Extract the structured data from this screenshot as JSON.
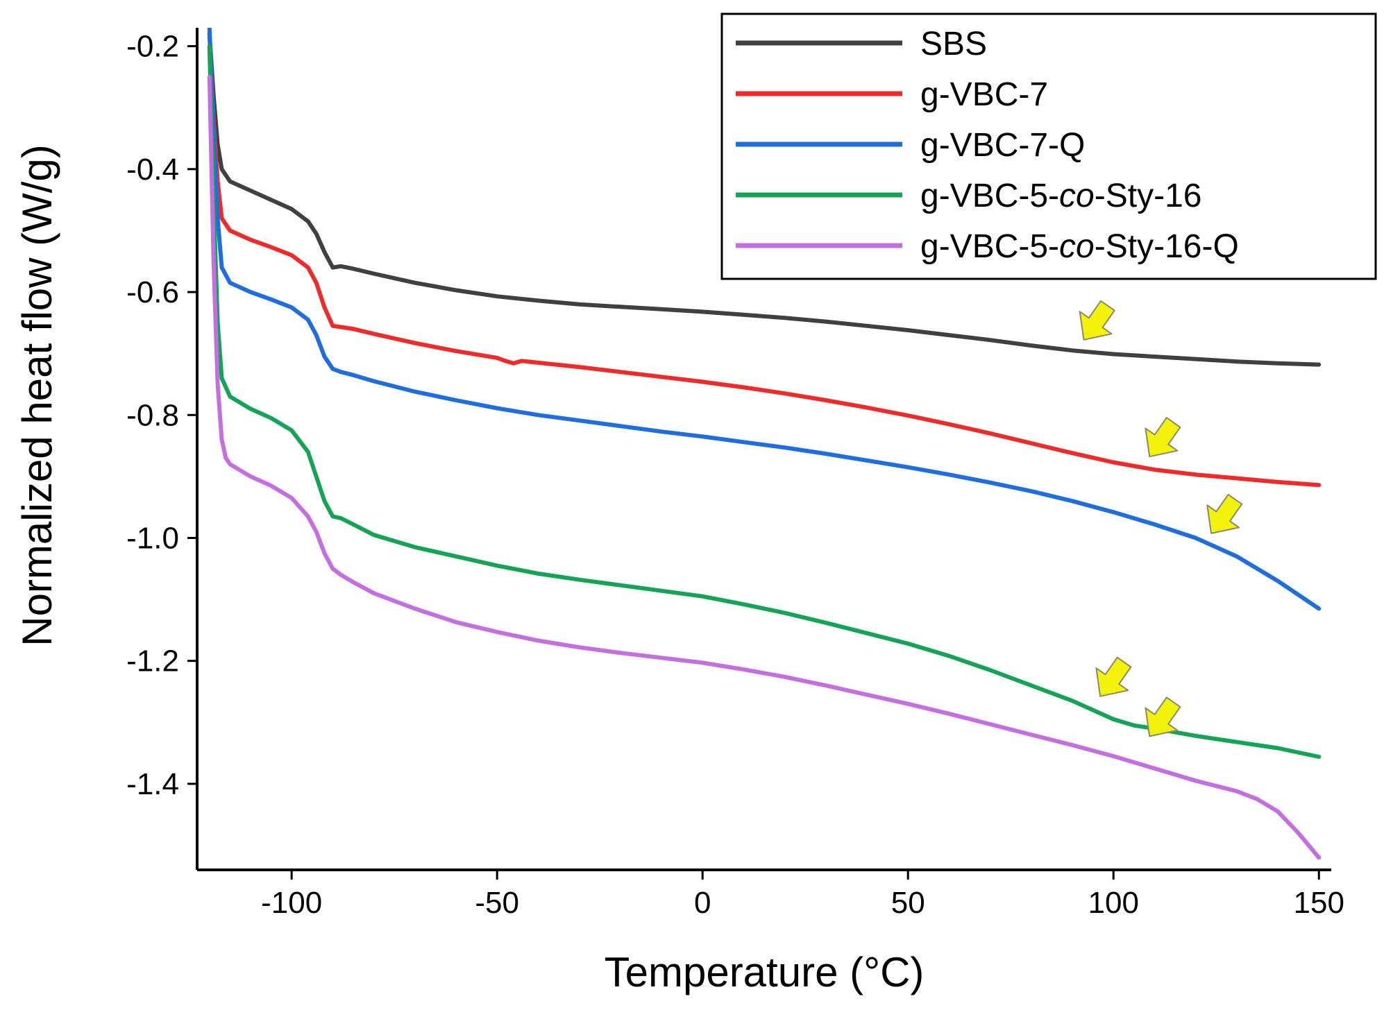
{
  "chart_data": {
    "type": "line",
    "xlabel": "Temperature (°C)",
    "ylabel": "Normalized heat flow (W/g)",
    "xlim": [
      -123,
      153
    ],
    "ylim": [
      -1.54,
      -0.17
    ],
    "xticks": [
      -100,
      -50,
      0,
      50,
      100,
      150
    ],
    "xtick_labels": [
      "-100",
      "-50",
      "0",
      "50",
      "100",
      "150"
    ],
    "yticks": [
      -0.2,
      -0.4,
      -0.6,
      -0.8,
      -1.0,
      -1.2,
      -1.4
    ],
    "ytick_labels": [
      "-0.2",
      "-0.4",
      "-0.6",
      "-0.8",
      "-1.0",
      "-1.2",
      "-1.4"
    ],
    "grid": false,
    "legend_position": "top-right",
    "series": [
      {
        "name": "SBS",
        "legend_parts": [
          {
            "text": "SBS",
            "italic": false
          }
        ],
        "color": "#404040",
        "x": [
          -120,
          -119,
          -118,
          -117,
          -115,
          -110,
          -105,
          -100,
          -96,
          -94,
          -92,
          -90,
          -88,
          -85,
          -80,
          -70,
          -60,
          -50,
          -40,
          -30,
          -20,
          -10,
          0,
          10,
          20,
          30,
          40,
          50,
          60,
          70,
          80,
          90,
          100,
          110,
          120,
          130,
          140,
          150
        ],
        "values": [
          -0.18,
          -0.28,
          -0.36,
          -0.4,
          -0.42,
          -0.435,
          -0.45,
          -0.465,
          -0.485,
          -0.505,
          -0.535,
          -0.56,
          -0.558,
          -0.562,
          -0.57,
          -0.585,
          -0.597,
          -0.607,
          -0.614,
          -0.62,
          -0.624,
          -0.628,
          -0.632,
          -0.637,
          -0.642,
          -0.648,
          -0.655,
          -0.662,
          -0.67,
          -0.678,
          -0.687,
          -0.695,
          -0.701,
          -0.705,
          -0.709,
          -0.713,
          -0.716,
          -0.718
        ]
      },
      {
        "name": "g-VBC-7",
        "legend_parts": [
          {
            "text": "g-VBC-7",
            "italic": false
          }
        ],
        "color": "#ee2a2a",
        "x": [
          -120,
          -119,
          -118,
          -117,
          -115,
          -110,
          -105,
          -100,
          -96,
          -94,
          -92,
          -90,
          -88,
          -85,
          -80,
          -70,
          -60,
          -50,
          -48,
          -46,
          -44,
          -40,
          -30,
          -20,
          -10,
          0,
          10,
          20,
          30,
          40,
          50,
          60,
          70,
          80,
          90,
          100,
          110,
          120,
          130,
          140,
          150
        ],
        "values": [
          -0.18,
          -0.32,
          -0.42,
          -0.48,
          -0.5,
          -0.515,
          -0.527,
          -0.54,
          -0.56,
          -0.585,
          -0.625,
          -0.655,
          -0.657,
          -0.66,
          -0.668,
          -0.683,
          -0.696,
          -0.707,
          -0.712,
          -0.716,
          -0.712,
          -0.715,
          -0.722,
          -0.73,
          -0.738,
          -0.746,
          -0.755,
          -0.765,
          -0.776,
          -0.788,
          -0.801,
          -0.815,
          -0.83,
          -0.846,
          -0.862,
          -0.877,
          -0.889,
          -0.897,
          -0.903,
          -0.909,
          -0.914
        ]
      },
      {
        "name": "g-VBC-7-Q",
        "legend_parts": [
          {
            "text": "g-VBC-7-Q",
            "italic": false
          }
        ],
        "color": "#1f6ee0",
        "x": [
          -120,
          -119,
          -118,
          -117,
          -115,
          -110,
          -105,
          -100,
          -96,
          -94,
          -92,
          -90,
          -88,
          -85,
          -80,
          -70,
          -60,
          -50,
          -40,
          -30,
          -20,
          -10,
          0,
          10,
          20,
          30,
          40,
          50,
          60,
          70,
          80,
          90,
          100,
          110,
          120,
          130,
          140,
          150
        ],
        "values": [
          -0.17,
          -0.34,
          -0.48,
          -0.56,
          -0.585,
          -0.6,
          -0.612,
          -0.625,
          -0.645,
          -0.67,
          -0.705,
          -0.725,
          -0.73,
          -0.735,
          -0.745,
          -0.762,
          -0.776,
          -0.789,
          -0.8,
          -0.809,
          -0.818,
          -0.827,
          -0.835,
          -0.844,
          -0.853,
          -0.863,
          -0.874,
          -0.885,
          -0.897,
          -0.91,
          -0.924,
          -0.94,
          -0.958,
          -0.978,
          -1.0,
          -1.03,
          -1.07,
          -1.115
        ]
      },
      {
        "name": "g-VBC-5-co-Sty-16",
        "legend_parts": [
          {
            "text": "g-VBC-5-",
            "italic": false
          },
          {
            "text": "co",
            "italic": true
          },
          {
            "text": "-Sty-16",
            "italic": false
          }
        ],
        "color": "#15a456",
        "x": [
          -120,
          -119,
          -118,
          -117,
          -115,
          -110,
          -105,
          -100,
          -96,
          -94,
          -92,
          -90,
          -88,
          -85,
          -80,
          -70,
          -60,
          -50,
          -40,
          -30,
          -20,
          -10,
          0,
          10,
          20,
          30,
          40,
          50,
          60,
          70,
          80,
          90,
          100,
          105,
          110,
          120,
          130,
          140,
          150
        ],
        "values": [
          -0.2,
          -0.45,
          -0.65,
          -0.74,
          -0.77,
          -0.79,
          -0.805,
          -0.825,
          -0.86,
          -0.9,
          -0.94,
          -0.965,
          -0.968,
          -0.978,
          -0.995,
          -1.015,
          -1.03,
          -1.045,
          -1.058,
          -1.068,
          -1.077,
          -1.086,
          -1.095,
          -1.108,
          -1.122,
          -1.138,
          -1.155,
          -1.172,
          -1.192,
          -1.215,
          -1.24,
          -1.265,
          -1.295,
          -1.305,
          -1.31,
          -1.322,
          -1.332,
          -1.342,
          -1.356
        ]
      },
      {
        "name": "g-VBC-5-co-Sty-16-Q",
        "legend_parts": [
          {
            "text": "g-VBC-5-",
            "italic": false
          },
          {
            "text": "co",
            "italic": true
          },
          {
            "text": "-Sty-16-Q",
            "italic": false
          }
        ],
        "color": "#c46ee0",
        "x": [
          -120,
          -119,
          -118,
          -117,
          -116,
          -115,
          -110,
          -105,
          -100,
          -96,
          -94,
          -92,
          -90,
          -88,
          -85,
          -80,
          -70,
          -60,
          -50,
          -40,
          -30,
          -20,
          -10,
          0,
          10,
          20,
          30,
          40,
          50,
          60,
          70,
          80,
          90,
          100,
          110,
          120,
          130,
          135,
          140,
          145,
          150
        ],
        "values": [
          -0.25,
          -0.55,
          -0.75,
          -0.84,
          -0.87,
          -0.88,
          -0.9,
          -0.915,
          -0.935,
          -0.965,
          -0.99,
          -1.025,
          -1.05,
          -1.06,
          -1.072,
          -1.09,
          -1.115,
          -1.137,
          -1.153,
          -1.167,
          -1.178,
          -1.187,
          -1.195,
          -1.203,
          -1.214,
          -1.226,
          -1.24,
          -1.255,
          -1.27,
          -1.286,
          -1.303,
          -1.32,
          -1.337,
          -1.355,
          -1.375,
          -1.395,
          -1.412,
          -1.425,
          -1.445,
          -1.48,
          -1.52
        ]
      }
    ],
    "annotations": [
      {
        "type": "arrow",
        "color": "#f2f20a",
        "x": 92,
        "y": -0.685
      },
      {
        "type": "arrow",
        "color": "#f2f20a",
        "x": 108,
        "y": -0.875
      },
      {
        "type": "arrow",
        "color": "#f2f20a",
        "x": 123,
        "y": -1.0
      },
      {
        "type": "arrow",
        "color": "#f2f20a",
        "x": 96,
        "y": -1.265
      },
      {
        "type": "arrow",
        "color": "#f2f20a",
        "x": 108,
        "y": -1.33
      }
    ]
  }
}
